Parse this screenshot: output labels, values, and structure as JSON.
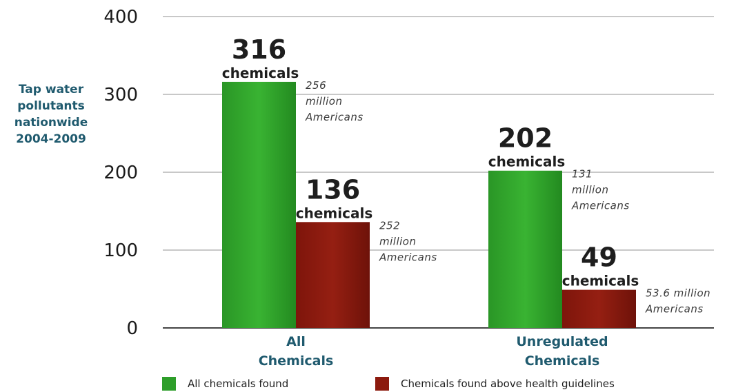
{
  "chart_data": {
    "type": "bar",
    "categories": [
      "All Chemicals",
      "Unregulated Chemicals"
    ],
    "category_labels": [
      [
        "All",
        "Chemicals"
      ],
      [
        "Unregulated",
        "Chemicals"
      ]
    ],
    "series": [
      {
        "name": "All chemicals found",
        "color": "#2e9e2a",
        "values": [
          316,
          202
        ],
        "count_labels": [
          "316",
          "202"
        ],
        "unit_labels": [
          "chemicals",
          "chemicals"
        ],
        "population_labels": [
          [
            "256",
            "million",
            "Americans"
          ],
          [
            "131",
            "million",
            "Americans"
          ]
        ]
      },
      {
        "name": "Chemicals found above health guidelines",
        "color": "#8c1a0e",
        "values": [
          136,
          49
        ],
        "count_labels": [
          "136",
          "49"
        ],
        "unit_labels": [
          "chemicals",
          "chemicals"
        ],
        "population_labels": [
          [
            "252",
            "million",
            "Americans"
          ],
          [
            "53.6 million",
            "Americans"
          ]
        ]
      }
    ],
    "ylabel_lines": [
      "Tap water",
      "pollutants",
      "nationwide",
      "2004-2009"
    ],
    "ylim": [
      0,
      400
    ],
    "yticks": [
      0,
      100,
      200,
      300,
      400
    ],
    "grid": true,
    "legend_position": "bottom"
  }
}
